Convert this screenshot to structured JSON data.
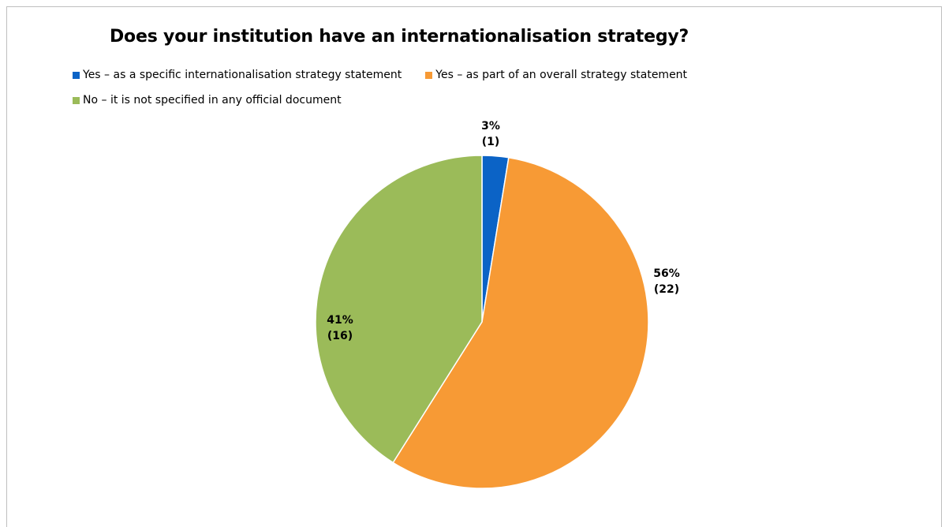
{
  "chart_data": {
    "type": "pie",
    "title": "Does your institution have an internationalisation strategy?",
    "legend_position": "top-left",
    "slices": [
      {
        "label": "Yes – as a specific internationalisation strategy statement",
        "value": 1,
        "percent_label": "3%",
        "count_label": "(1)",
        "color": "#0b63c6"
      },
      {
        "label": "Yes – as part of an overall strategy statement",
        "value": 22,
        "percent_label": "56%",
        "count_label": "(22)",
        "color": "#f79a35"
      },
      {
        "label": "No – it is not specified in any official document",
        "value": 16,
        "percent_label": "41%",
        "count_label": "(16)",
        "color": "#9bbb59"
      }
    ]
  }
}
